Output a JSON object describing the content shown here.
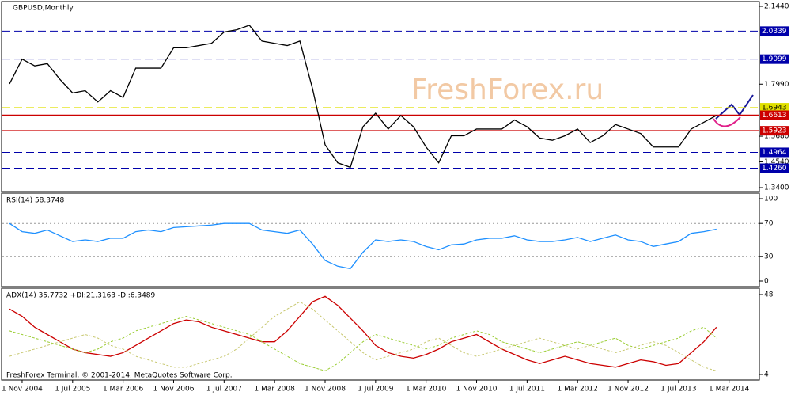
{
  "chart_data": [
    {
      "type": "line",
      "title": "GBPUSD,Monthly",
      "watermark": "FreshForex.ru",
      "footer": "FreshForex Terminal, © 2001-2014, MetaQuotes Software Corp.",
      "categories": [
        null,
        "1 Nov 2004",
        null,
        null,
        null,
        "1 Jul 2005",
        null,
        null,
        null,
        "1 Mar 2006",
        null,
        null,
        null,
        "1 Nov 2006",
        null,
        null,
        null,
        "1 Jul 2007",
        null,
        null,
        null,
        "1 Mar 2008",
        null,
        null,
        null,
        "1 Nov 2008",
        null,
        null,
        null,
        "1 Jul 2009",
        null,
        null,
        null,
        "1 Mar 2010",
        null,
        null,
        null,
        "1 Nov 2010",
        null,
        null,
        null,
        "1 Jul 2011",
        null,
        null,
        null,
        "1 Mar 2012",
        null,
        null,
        null,
        "1 Nov 2012",
        null,
        null,
        null,
        "1 Jul 2013",
        null,
        null,
        null,
        "1 Mar 2014"
      ],
      "series": [
        {
          "name": "GBPUSD",
          "color": "#000000",
          "values": [
            1.8,
            1.91,
            1.88,
            1.89,
            1.82,
            1.76,
            1.77,
            1.72,
            1.77,
            1.74,
            1.87,
            1.87,
            1.87,
            1.96,
            1.96,
            1.97,
            1.98,
            2.03,
            2.04,
            2.06,
            1.99,
            1.98,
            1.97,
            1.99,
            1.78,
            1.53,
            1.45,
            1.43,
            1.61,
            1.67,
            1.6,
            1.66,
            1.61,
            1.52,
            1.45,
            1.57,
            1.57,
            1.6,
            1.6,
            1.6,
            1.64,
            1.61,
            1.56,
            1.55,
            1.57,
            1.6,
            1.54,
            1.57,
            1.62,
            1.6,
            1.58,
            1.52,
            1.52,
            1.52,
            1.6,
            1.63,
            1.66,
            null
          ]
        }
      ],
      "ylim": [
        1.34,
        2.144
      ],
      "yticks": [
        {
          "value": 2.144,
          "label": "2.1440"
        },
        {
          "value": 1.799,
          "label": "1.7990"
        },
        {
          "value": 1.568,
          "label": "1.5680"
        },
        {
          "value": 1.454,
          "label": "1.4540"
        },
        {
          "value": 1.34,
          "label": "1.3400"
        }
      ],
      "levels": [
        {
          "value": 2.0339,
          "color": "#0000aa"
        },
        {
          "value": 1.9099,
          "color": "#0000aa"
        },
        {
          "value": 1.6943,
          "color": "#e0e000"
        },
        {
          "value": 1.6613,
          "color": "#cc0000"
        },
        {
          "value": 1.5923,
          "color": "#cc0000"
        },
        {
          "value": 1.4964,
          "color": "#0000aa"
        },
        {
          "value": {
            "value": 1.426,
            "label": "1.4260"
          },
          "color": "#0000aa"
        }
      ]
    },
    {
      "type": "line",
      "title": "RSI(14) 58.3748",
      "series": [
        {
          "name": "RSI",
          "color": "#1e90ff",
          "values": [
            70,
            60,
            58,
            62,
            55,
            48,
            50,
            48,
            52,
            52,
            60,
            62,
            60,
            65,
            66,
            67,
            68,
            70,
            70,
            70,
            62,
            60,
            58,
            62,
            45,
            25,
            18,
            15,
            35,
            50,
            48,
            50,
            48,
            42,
            38,
            44,
            45,
            50,
            52,
            52,
            55,
            50,
            48,
            48,
            50,
            53,
            48,
            52,
            56,
            50,
            48,
            42,
            45,
            48,
            58,
            60,
            63,
            null
          ]
        }
      ],
      "ylim": [
        0,
        100
      ],
      "yticks": [
        100,
        70,
        30,
        0
      ]
    },
    {
      "type": "line",
      "title": "ADX(14) 35.7732 +DI:21.3163 -DI:6.3489",
      "series": [
        {
          "name": "ADX",
          "color": "#cc0000",
          "values": [
            40,
            36,
            30,
            26,
            22,
            18,
            16,
            15,
            14,
            16,
            20,
            24,
            28,
            32,
            34,
            33,
            30,
            28,
            26,
            24,
            22,
            22,
            28,
            36,
            44,
            47,
            42,
            35,
            28,
            20,
            16,
            14,
            13,
            15,
            18,
            22,
            24,
            26,
            22,
            18,
            15,
            12,
            10,
            12,
            14,
            12,
            10,
            9,
            8,
            10,
            12,
            11,
            9,
            10,
            16,
            22,
            30,
            null
          ]
        },
        {
          "name": "+DI",
          "color": "#9acd32",
          "values": [
            28,
            26,
            24,
            22,
            20,
            18,
            16,
            18,
            22,
            24,
            28,
            30,
            32,
            34,
            36,
            34,
            32,
            30,
            28,
            26,
            22,
            18,
            14,
            10,
            8,
            6,
            10,
            16,
            22,
            26,
            24,
            22,
            20,
            18,
            20,
            24,
            26,
            28,
            26,
            22,
            20,
            18,
            16,
            18,
            20,
            22,
            20,
            22,
            24,
            20,
            18,
            20,
            22,
            24,
            28,
            30,
            24,
            null
          ]
        },
        {
          "name": "-DI",
          "color": "#c8c870",
          "values": [
            14,
            16,
            18,
            20,
            22,
            24,
            26,
            24,
            20,
            18,
            14,
            12,
            10,
            8,
            8,
            10,
            12,
            14,
            18,
            24,
            30,
            36,
            40,
            44,
            40,
            34,
            28,
            22,
            16,
            12,
            14,
            16,
            18,
            22,
            24,
            20,
            16,
            14,
            16,
            18,
            20,
            22,
            24,
            22,
            20,
            18,
            20,
            18,
            16,
            18,
            20,
            22,
            20,
            16,
            12,
            8,
            6,
            null
          ]
        }
      ],
      "ylim": [
        4,
        48
      ],
      "yticks": [
        48,
        4
      ]
    }
  ]
}
